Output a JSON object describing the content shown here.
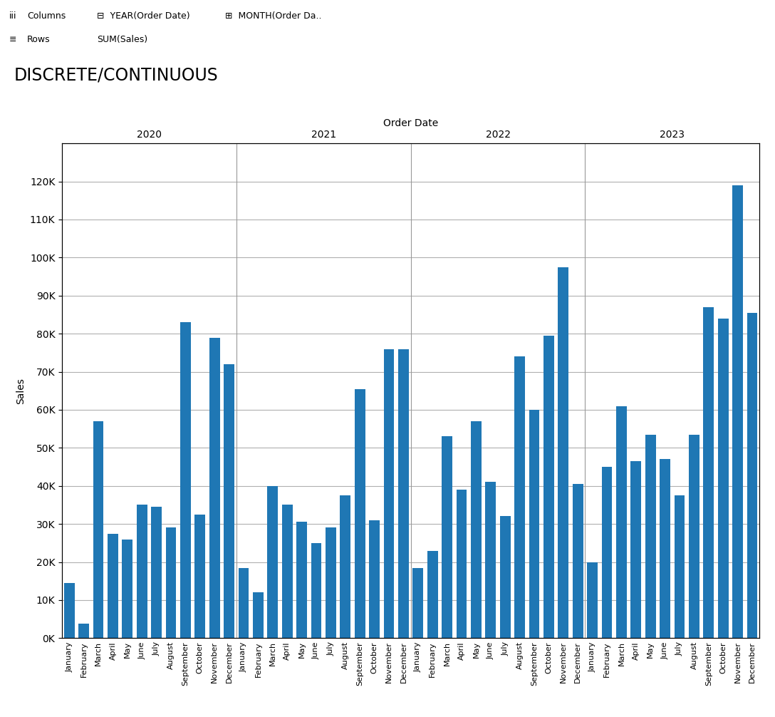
{
  "chart_data": {
    "type": "bar",
    "title": "DISCRETE/CONTINUOUS",
    "annotations": [
      [
        "iii",
        "Columns",
        "⊟  YEAR(Order Date)",
        "⊞  MONTH(Order Da.."
      ],
      [
        "≡",
        "Rows",
        "SUM(Sales)"
      ]
    ],
    "xlabel": "Order Date",
    "ylabel": "Sales",
    "group_labels": [
      "2020",
      "2021",
      "2022",
      "2023"
    ],
    "categories": [
      "January",
      "February",
      "March",
      "April",
      "May",
      "June",
      "July",
      "August",
      "September",
      "October",
      "November",
      "December",
      "January",
      "February",
      "March",
      "April",
      "May",
      "June",
      "July",
      "August",
      "September",
      "October",
      "November",
      "December",
      "January",
      "February",
      "March",
      "April",
      "May",
      "June",
      "July",
      "August",
      "September",
      "October",
      "November",
      "December",
      "January",
      "February",
      "March",
      "April",
      "May",
      "June",
      "July",
      "August",
      "September",
      "October",
      "November",
      "December"
    ],
    "values": [
      14500,
      3800,
      57000,
      27500,
      26000,
      35000,
      34500,
      29000,
      83000,
      32500,
      79000,
      72000,
      18500,
      12000,
      40000,
      35000,
      30500,
      25000,
      29000,
      37500,
      65500,
      31000,
      76000,
      76000,
      18500,
      23000,
      53000,
      39000,
      57000,
      41000,
      32000,
      74000,
      60000,
      79500,
      97500,
      40500,
      20000,
      45000,
      61000,
      46500,
      53500,
      47000,
      37500,
      53500,
      87000,
      84000,
      119000,
      85500
    ],
    "ylim": [
      0,
      130000
    ],
    "yticks": [
      {
        "value": 0,
        "label": "0K"
      },
      {
        "value": 10000,
        "label": "10K"
      },
      {
        "value": 20000,
        "label": "20K"
      },
      {
        "value": 30000,
        "label": "30K"
      },
      {
        "value": 40000,
        "label": "40K"
      },
      {
        "value": 50000,
        "label": "50K"
      },
      {
        "value": 60000,
        "label": "60K"
      },
      {
        "value": 70000,
        "label": "70K"
      },
      {
        "value": 80000,
        "label": "80K"
      },
      {
        "value": 90000,
        "label": "90K"
      },
      {
        "value": 100000,
        "label": "100K"
      },
      {
        "value": 110000,
        "label": "110K"
      },
      {
        "value": 120000,
        "label": "120K"
      }
    ],
    "grid": true
  }
}
